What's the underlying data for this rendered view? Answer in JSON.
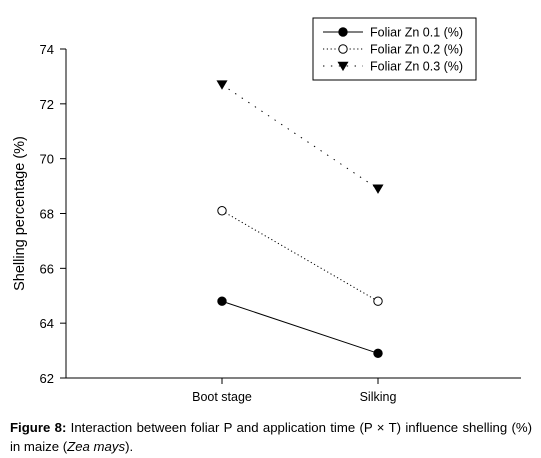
{
  "chart_data": {
    "type": "line",
    "categories": [
      "Boot stage",
      "Silking"
    ],
    "series": [
      {
        "name": "Foliar Zn 0.1 (%)",
        "values": [
          64.8,
          62.9
        ],
        "marker": "filled-circle",
        "line": "solid"
      },
      {
        "name": "Foliar Zn 0.2 (%)",
        "values": [
          68.1,
          64.8
        ],
        "marker": "open-circle",
        "line": "dotted"
      },
      {
        "name": "Foliar Zn 0.3 (%)",
        "values": [
          72.7,
          68.9
        ],
        "marker": "filled-triangle-down",
        "line": "sparse-dotted"
      }
    ],
    "title": "",
    "xlabel": "",
    "ylabel": "Shelling percentage (%)",
    "ylim": [
      62,
      74
    ],
    "yticks": [
      62,
      64,
      66,
      68,
      70,
      72,
      74
    ],
    "grid": false,
    "legend": "top-right"
  },
  "caption": {
    "label": "Figure 8:",
    "text_before": " Interaction between foliar P and application time (P × T) influence shelling (%) in maize (",
    "species": "Zea mays",
    "text_after": ")."
  },
  "colors": {
    "ink": "#000000",
    "background": "#ffffff"
  }
}
